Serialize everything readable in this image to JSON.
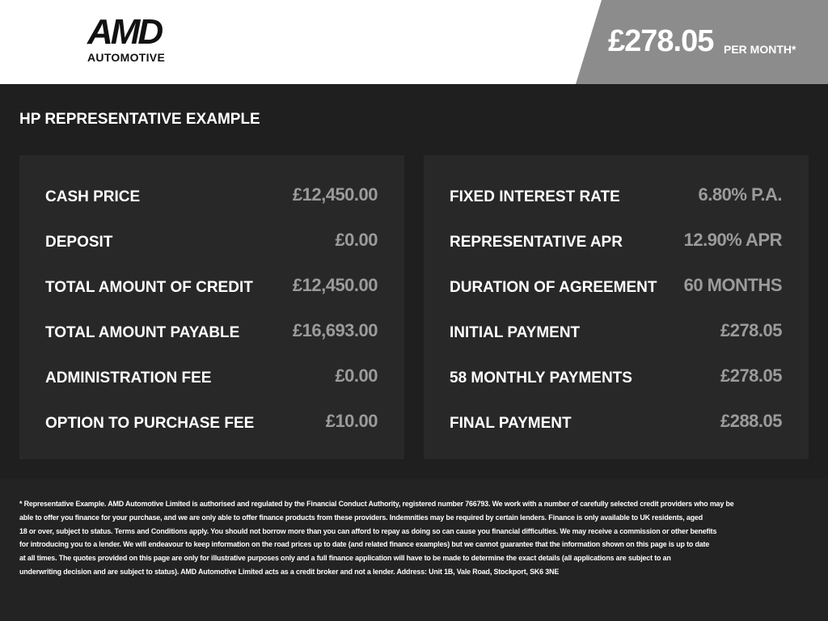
{
  "header": {
    "logo": {
      "brand": "AMD",
      "subtitle": "AUTOMOTIVE"
    },
    "price": "£278.05",
    "price_suffix": "PER MONTH*"
  },
  "section_title": "HP REPRESENTATIVE EXAMPLE",
  "panels": [
    {
      "rows": [
        [
          "CASH PRICE",
          "£12,450.00"
        ],
        [
          "DEPOSIT",
          "£0.00"
        ],
        [
          "TOTAL AMOUNT OF CREDIT",
          "£12,450.00"
        ],
        [
          "TOTAL AMOUNT PAYABLE",
          "£16,693.00"
        ],
        [
          "ADMINISTRATION FEE",
          "£0.00"
        ],
        [
          "OPTION TO PURCHASE FEE",
          "£10.00"
        ]
      ]
    },
    {
      "rows": [
        [
          "FIXED INTEREST RATE",
          "6.80% P.A."
        ],
        [
          "REPRESENTATIVE APR",
          "12.90% APR"
        ],
        [
          "DURATION OF AGREEMENT",
          "60 MONTHS"
        ],
        [
          "INITIAL PAYMENT",
          "£278.05"
        ],
        [
          "58 MONTHLY PAYMENTS",
          "£278.05"
        ],
        [
          "FINAL PAYMENT",
          "£288.05"
        ]
      ]
    }
  ],
  "footer": {
    "lines": [
      "* Representative Example. AMD Automotive Limited is authorised and regulated by the Financial Conduct Authority, registered number 766793. We work with a number of carefully selected credit providers who may be",
      "able to offer you finance for your purchase, and we are only able to offer finance products from these providers. Indemnities may be required by certain lenders. Finance is only available to UK residents, aged",
      "18 or over, subject to status. Terms and Conditions apply. You should not borrow more than you can afford to repay as doing so can cause you financial difficulties. We may receive a commission or other benefits",
      "for introducing you to a lender. We will endeavour to keep information on the road prices up to date (and related finance examples) but we cannot guarantee that the information shown on this page is up to date",
      "at all times. The quotes provided on this page are only for illustrative purposes only and a full finance application will have to be made to determine the exact details (all applications are subject to an",
      "underwriting decision and are subject to status). AMD Automotive Limited acts as a credit broker and not a lender. Address: Unit 1B, Vale Road, Stockport, SK6 3NE"
    ]
  }
}
